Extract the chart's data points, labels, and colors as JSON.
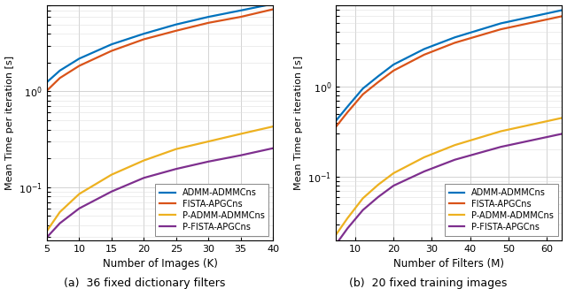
{
  "left_plot": {
    "xlabel": "Number of Images (K)",
    "ylabel": "Mean Time per iteration [s]",
    "caption": "(a)  36 fixed dictionary filters",
    "xlim": [
      5,
      40
    ],
    "ylim": [
      0.028,
      8.0
    ],
    "xticks": [
      5,
      10,
      15,
      20,
      25,
      30,
      35,
      40
    ],
    "x": [
      5,
      7,
      10,
      15,
      20,
      25,
      30,
      35,
      40
    ],
    "ADMM": [
      1.25,
      1.65,
      2.2,
      3.1,
      4.0,
      5.0,
      6.0,
      7.0,
      8.2
    ],
    "FISTA": [
      1.02,
      1.38,
      1.85,
      2.65,
      3.5,
      4.3,
      5.2,
      6.0,
      7.2
    ],
    "PADMM": [
      0.035,
      0.055,
      0.085,
      0.135,
      0.19,
      0.25,
      0.3,
      0.36,
      0.43
    ],
    "PFISTA": [
      0.03,
      0.042,
      0.06,
      0.09,
      0.125,
      0.155,
      0.185,
      0.215,
      0.255
    ]
  },
  "right_plot": {
    "xlabel": "Number of Filters (M)",
    "ylabel": "Mean Time per iteration [s]",
    "caption": "(b)  20 fixed training images",
    "xlim": [
      5,
      64
    ],
    "ylim": [
      0.02,
      8.0
    ],
    "xticks": [
      10,
      20,
      30,
      40,
      50,
      60
    ],
    "x": [
      5,
      8,
      12,
      16,
      20,
      28,
      36,
      48,
      64
    ],
    "ADMM": [
      0.42,
      0.6,
      0.95,
      1.3,
      1.75,
      2.6,
      3.5,
      5.0,
      7.0
    ],
    "FISTA": [
      0.36,
      0.52,
      0.82,
      1.12,
      1.5,
      2.25,
      3.05,
      4.3,
      6.0
    ],
    "PADMM": [
      0.023,
      0.035,
      0.058,
      0.082,
      0.11,
      0.165,
      0.225,
      0.32,
      0.45
    ],
    "PFISTA": [
      0.018,
      0.027,
      0.043,
      0.06,
      0.08,
      0.115,
      0.155,
      0.215,
      0.3
    ]
  },
  "colors": {
    "ADMM": "#0072BD",
    "FISTA": "#D95319",
    "PADMM": "#EDB120",
    "PFISTA": "#7E2F8E"
  },
  "legend_labels": {
    "ADMM": "ADMM-ADMMCns",
    "FISTA": "FISTA-APGCns",
    "PADMM": "P-ADMM-ADMMCns",
    "PFISTA": "P-FISTA-APGCns"
  },
  "linewidth": 1.6
}
